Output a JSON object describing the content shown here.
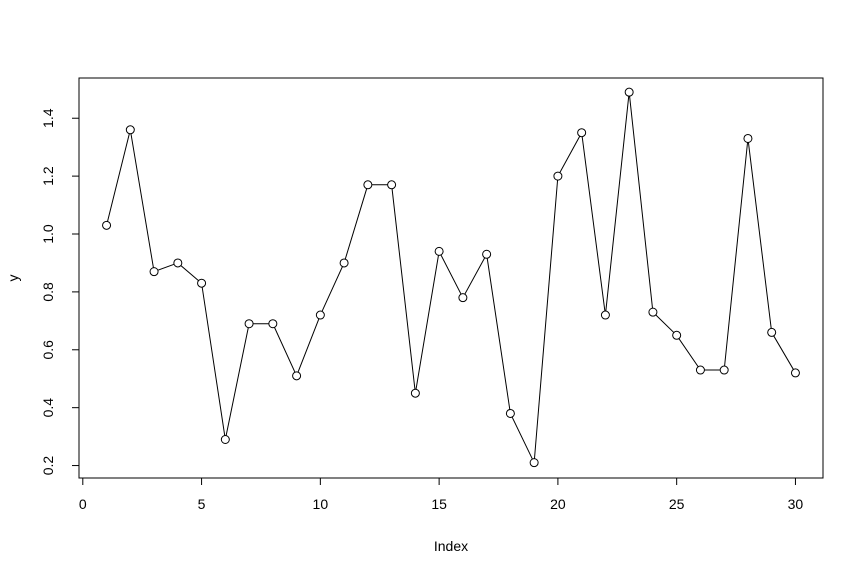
{
  "chart_data": {
    "type": "line",
    "xlabel": "Index",
    "ylabel": "y",
    "x": [
      1,
      2,
      3,
      4,
      5,
      6,
      7,
      8,
      9,
      10,
      11,
      12,
      13,
      14,
      15,
      16,
      17,
      18,
      19,
      20,
      21,
      22,
      23,
      24,
      25,
      26,
      27,
      28,
      29,
      30
    ],
    "series": [
      {
        "color": "#000000",
        "values": [
          1.03,
          1.36,
          0.87,
          0.9,
          0.83,
          0.29,
          0.69,
          0.69,
          0.51,
          0.72,
          0.9,
          1.17,
          1.17,
          0.45,
          0.94,
          0.78,
          0.93,
          0.38,
          0.21,
          1.2,
          1.35,
          0.72,
          1.49,
          0.73,
          0.65,
          0.53,
          0.53,
          1.33,
          0.66,
          0.52
        ]
      }
    ],
    "xlim": [
      -0.16,
      31.16
    ],
    "xticks": [
      0,
      5,
      10,
      15,
      20,
      25,
      30
    ],
    "ylim": [
      0.157,
      1.539
    ],
    "yticks": [
      0.2,
      0.4,
      0.6,
      0.8,
      {
        "value": 1,
        "label": "1.0"
      },
      1.2,
      1.4
    ],
    "grid": false
  }
}
